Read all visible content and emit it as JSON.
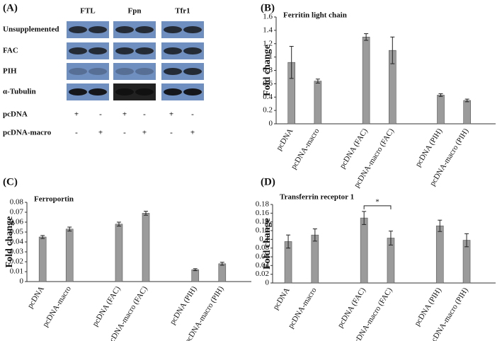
{
  "panel_a": {
    "label": "(A)",
    "proteins": [
      "FTL",
      "Fpn",
      "Tfr1"
    ],
    "rows": [
      "Unsupplemented",
      "FAC",
      "PIH",
      "α-Tubulin"
    ],
    "treatments": [
      {
        "name": "pcDNA",
        "signs": [
          "+",
          "-",
          "+",
          "-",
          "+",
          "-"
        ]
      },
      {
        "name": "pcDNA-macro",
        "signs": [
          "-",
          "+",
          "-",
          "+",
          "-",
          "+"
        ]
      }
    ]
  },
  "chart_data": [
    {
      "type": "bar",
      "panel": "(B)",
      "title": "Ferritin light chain",
      "y_label": "Fold change",
      "categories": [
        "pcDNA",
        "pcDNA-macro",
        "pcDNA (FAC)",
        "pcDNA-macro (FAC)",
        "pcDNA (PIH)",
        "pcDNA-macro (PIH)"
      ],
      "values": [
        0.92,
        0.64,
        1.3,
        1.1,
        0.43,
        0.35
      ],
      "errors": [
        0.24,
        0.03,
        0.05,
        0.2,
        0.02,
        0.02
      ],
      "color": "#9b9b9b",
      "ylim": [
        0,
        1.6
      ],
      "yticks": [
        0,
        0.2,
        0.4,
        0.6,
        0.8,
        1,
        1.2,
        1.4,
        1.6
      ]
    },
    {
      "type": "bar",
      "panel": "(C)",
      "title": "Ferroportin",
      "y_label": "Fold change",
      "categories": [
        "pcDNA",
        "pcDNA-macro",
        "pcDNA (FAC)",
        "pcDNA-macro (FAC)",
        "pcDNA (PIH)",
        "pcDNA-macro (PIH)"
      ],
      "values": [
        0.045,
        0.053,
        0.058,
        0.069,
        0.012,
        0.018
      ],
      "errors": [
        0.0015,
        0.002,
        0.002,
        0.002,
        0.001,
        0.0015
      ],
      "color": "#9b9b9b",
      "ylim": [
        0,
        0.08
      ],
      "yticks": [
        0,
        0.01,
        0.02,
        0.03,
        0.04,
        0.05,
        0.06,
        0.07,
        0.08
      ]
    },
    {
      "type": "bar",
      "panel": "(D)",
      "title": "Transferrin receptor 1",
      "y_label": "Fold change",
      "categories": [
        "pcDNA",
        "pcDNA-macro",
        "pcDNA (FAC)",
        "pcDNA-macro (FAC)",
        "pcDNA (PIH)",
        "pcDNA-macro (PIH)"
      ],
      "values": [
        0.095,
        0.11,
        0.149,
        0.103,
        0.131,
        0.098
      ],
      "errors": [
        0.015,
        0.014,
        0.015,
        0.016,
        0.013,
        0.015
      ],
      "color": "#9b9b9b",
      "ylim": [
        0,
        0.18
      ],
      "yticks": [
        0,
        0.02,
        0.04,
        0.06,
        0.08,
        0.1,
        0.12,
        0.14,
        0.16,
        0.18
      ],
      "significance": {
        "label": "*",
        "between": [
          "pcDNA (FAC)",
          "pcDNA-macro (FAC)"
        ]
      }
    }
  ]
}
